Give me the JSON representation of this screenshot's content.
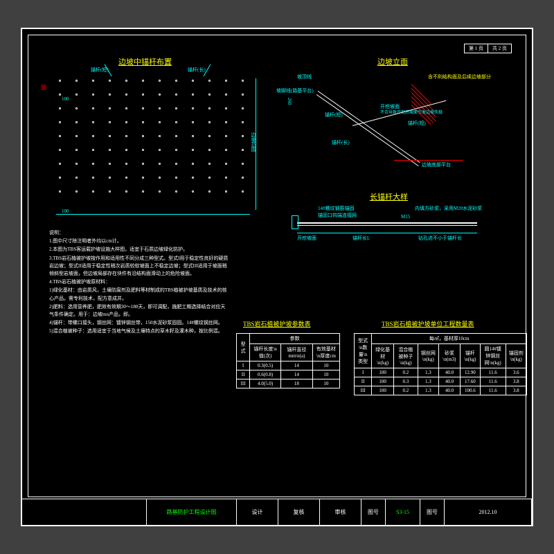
{
  "page_info": {
    "page": "第 1 页",
    "total": "共 2 页"
  },
  "titles": {
    "anchor_layout": "边坡中锚杆布置",
    "elevation": "边坡立面",
    "anchor_detail": "长锚杆大样"
  },
  "labels": {
    "anchor_short": "锚杆(短)",
    "anchor_long": "锚杆(长)",
    "slope_top": "坡顶线",
    "slope_bottom": "坡脚线(路基平台)",
    "slope_range": "边坡范围",
    "cut_note1": "开挖坡面",
    "cut_note2": "不合导致开挖后坡面引发边坡失稳",
    "hatch_note": "含不利结构面及后续边坡部分",
    "platform": "边坡底部平台",
    "rebar": "14#螺纹钢筋锚固",
    "hook": "锚固口钩端连接网",
    "len": "锚杆长L",
    "face": "开挖坡面",
    "mortar1": "M15",
    "mortar2": "内填方砂浆，采用M20水泥砂浆",
    "bore": "钻孔进不小于锚杆长",
    "dim_260": "260",
    "dim_100": "100"
  },
  "notes_title": "说明：",
  "notes": [
    "1.图中尺寸除注明者外均以cm计。",
    "2.本图为TBS客运载护坡设施大样图，适宜于石质边坡绿化防护。",
    "3.TBS岩石植被护坡按作用和适用性不同分成三种型式。型式I用于稳定性良好的硬质岩边坡；型式II适用于稳定性稍次岩质较软坡面上不稳定边坡；型式III适用于坡面稍倾斜型岩坡面，但边坡局部存在块件有沿结构面滑动上的危险坡面。",
    "4.TBS岩石植被护坡原材料：",
    "1)绿化基材：由岩质风，土壤防腐剂及肥料等材制成的TBS植被护坡基质及技术的核心产品。需专利技术，配方意成并。",
    "2)肥料：选用营养肥，肥效有效期30～180天，即可调配，施肥工期选择结合对应天气条件确定。用于：边坡mn产品，即。",
    "4)锚杆：带螺口接头，钢丝网：镀锌钢丝带，150水泥砂浆固固。14#螺纹钢丝网。",
    "5)混合植被种子：选用适宜于当地气候及土壤特点的草木籽及灌木种，按比例混。"
  ],
  "table1_title": "TBS岩石植被护坡参数表",
  "table1": {
    "headers": [
      "型式",
      "锚杆长度\\n值(次)",
      "锚杆直径mm\\n(a)",
      "有效基材\\n厚度cm"
    ],
    "rows": [
      [
        "I",
        "0.3(0.5)",
        "14",
        "10"
      ],
      [
        "II",
        "0.6(0.8)",
        "14",
        "10"
      ],
      [
        "III",
        "4.0(5.0)",
        "18",
        "10"
      ]
    ]
  },
  "table2_title": "TBS岩石植被护坡单位工程数量表",
  "table2": {
    "headers_top": [
      "型式\\n数量\\n类型",
      "每㎡",
      "基材厚10cm"
    ],
    "headers": [
      "绿化基材\\n(kg)",
      "混合植被种子\\n(kg)",
      "钢丝网\\n(kg)",
      "砂浆\\n(m3)",
      "锚杆\\n(kg)",
      "圆14#镀锌钢丝网\\n(kg)",
      "锚固剂\\n(kg)"
    ],
    "rows": [
      [
        "I",
        "100",
        "0.2",
        "1.3",
        "40.0",
        "12.90",
        "11.6",
        "3.6"
      ],
      [
        "II",
        "100",
        "0.3",
        "1.3",
        "40.0",
        "17.60",
        "11.6",
        "3.8"
      ],
      [
        "III",
        "100",
        "0.2",
        "1.3",
        "40.0",
        "100.6",
        "11.6",
        "3.8"
      ]
    ]
  },
  "title_block": {
    "project": "路基防护工程设计图",
    "design": "设计",
    "check": "复核",
    "review": "审核",
    "drawing_no_label": "图号",
    "drawing_no": "S3-15",
    "drawing_label": "图号",
    "date": "2012.10"
  },
  "colors": {
    "bg": "#000000",
    "border": "#ffffff",
    "title": "#FFFF00",
    "dim": "#00FFFF",
    "hatch": "#FF0000",
    "project": "#00FF00"
  }
}
